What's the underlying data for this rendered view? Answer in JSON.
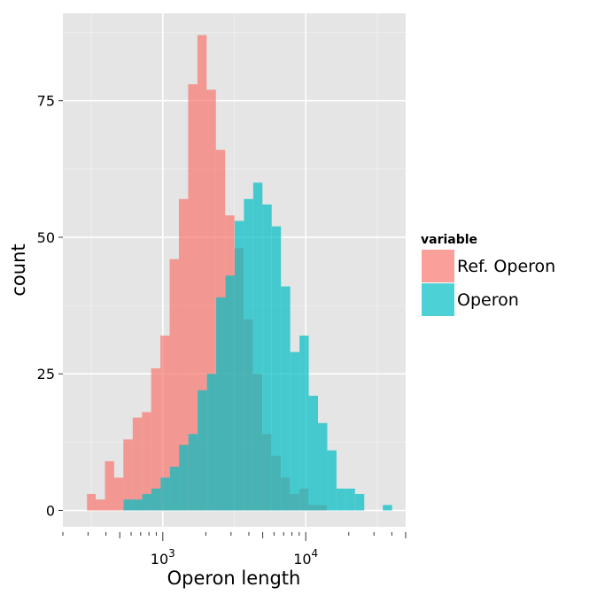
{
  "chart_data": {
    "type": "histogram",
    "xlabel": "Operon length",
    "ylabel": "count",
    "x_scale": "log10",
    "x_tick_labels": [
      {
        "base": "10",
        "exp": "3",
        "value": 1000
      },
      {
        "base": "10",
        "exp": "4",
        "value": 10000
      }
    ],
    "xlim": [
      200,
      50000
    ],
    "y_ticks": [
      0,
      25,
      50,
      75
    ],
    "ylim": [
      -3,
      91
    ],
    "grid": true,
    "legend": {
      "title": "variable",
      "position": "right"
    },
    "bin_width_log10": 0.065,
    "series": [
      {
        "name": "Ref. Operon",
        "color": "#F8766D",
        "bins": [
          {
            "start": 295,
            "end": 339,
            "count": 3
          },
          {
            "start": 339,
            "end": 394,
            "count": 2
          },
          {
            "start": 394,
            "end": 457,
            "count": 9
          },
          {
            "start": 457,
            "end": 530,
            "count": 6
          },
          {
            "start": 530,
            "end": 616,
            "count": 13
          },
          {
            "start": 616,
            "end": 715,
            "count": 17
          },
          {
            "start": 715,
            "end": 829,
            "count": 18
          },
          {
            "start": 829,
            "end": 963,
            "count": 26
          },
          {
            "start": 963,
            "end": 1117,
            "count": 32
          },
          {
            "start": 1117,
            "end": 1296,
            "count": 46
          },
          {
            "start": 1296,
            "end": 1504,
            "count": 57
          },
          {
            "start": 1504,
            "end": 1747,
            "count": 78
          },
          {
            "start": 1747,
            "end": 2027,
            "count": 87
          },
          {
            "start": 2027,
            "end": 2352,
            "count": 77
          },
          {
            "start": 2352,
            "end": 2730,
            "count": 66
          },
          {
            "start": 2730,
            "end": 3170,
            "count": 54
          },
          {
            "start": 3170,
            "end": 3678,
            "count": 48
          },
          {
            "start": 3678,
            "end": 4270,
            "count": 35
          },
          {
            "start": 4270,
            "end": 4957,
            "count": 25
          },
          {
            "start": 4957,
            "end": 5754,
            "count": 14
          },
          {
            "start": 5754,
            "end": 6679,
            "count": 10
          },
          {
            "start": 6679,
            "end": 7753,
            "count": 6
          },
          {
            "start": 7753,
            "end": 8999,
            "count": 3
          },
          {
            "start": 8999,
            "end": 10445,
            "count": 4
          },
          {
            "start": 10445,
            "end": 12124,
            "count": 1
          },
          {
            "start": 12124,
            "end": 14073,
            "count": 1
          }
        ]
      },
      {
        "name": "Operon",
        "color": "#00BFC4",
        "bins": [
          {
            "start": 531,
            "end": 618,
            "count": 2
          },
          {
            "start": 618,
            "end": 717,
            "count": 2
          },
          {
            "start": 717,
            "end": 832,
            "count": 3
          },
          {
            "start": 832,
            "end": 965,
            "count": 4
          },
          {
            "start": 965,
            "end": 1121,
            "count": 6
          },
          {
            "start": 1121,
            "end": 1301,
            "count": 8
          },
          {
            "start": 1301,
            "end": 1510,
            "count": 12
          },
          {
            "start": 1510,
            "end": 1753,
            "count": 14
          },
          {
            "start": 1753,
            "end": 2035,
            "count": 22
          },
          {
            "start": 2035,
            "end": 2362,
            "count": 25
          },
          {
            "start": 2362,
            "end": 2742,
            "count": 39
          },
          {
            "start": 2742,
            "end": 3183,
            "count": 43
          },
          {
            "start": 3183,
            "end": 3694,
            "count": 53
          },
          {
            "start": 3694,
            "end": 4288,
            "count": 57
          },
          {
            "start": 4288,
            "end": 4978,
            "count": 60
          },
          {
            "start": 4978,
            "end": 5778,
            "count": 56
          },
          {
            "start": 5778,
            "end": 6707,
            "count": 52
          },
          {
            "start": 6707,
            "end": 7786,
            "count": 41
          },
          {
            "start": 7786,
            "end": 9038,
            "count": 29
          },
          {
            "start": 9038,
            "end": 10491,
            "count": 32
          },
          {
            "start": 10491,
            "end": 12178,
            "count": 21
          },
          {
            "start": 12178,
            "end": 14136,
            "count": 16
          },
          {
            "start": 14136,
            "end": 16410,
            "count": 11
          },
          {
            "start": 16410,
            "end": 19049,
            "count": 4
          },
          {
            "start": 19049,
            "end": 22112,
            "count": 4
          },
          {
            "start": 22112,
            "end": 25668,
            "count": 3
          },
          {
            "start": 34594,
            "end": 40156,
            "count": 1
          }
        ]
      }
    ]
  }
}
